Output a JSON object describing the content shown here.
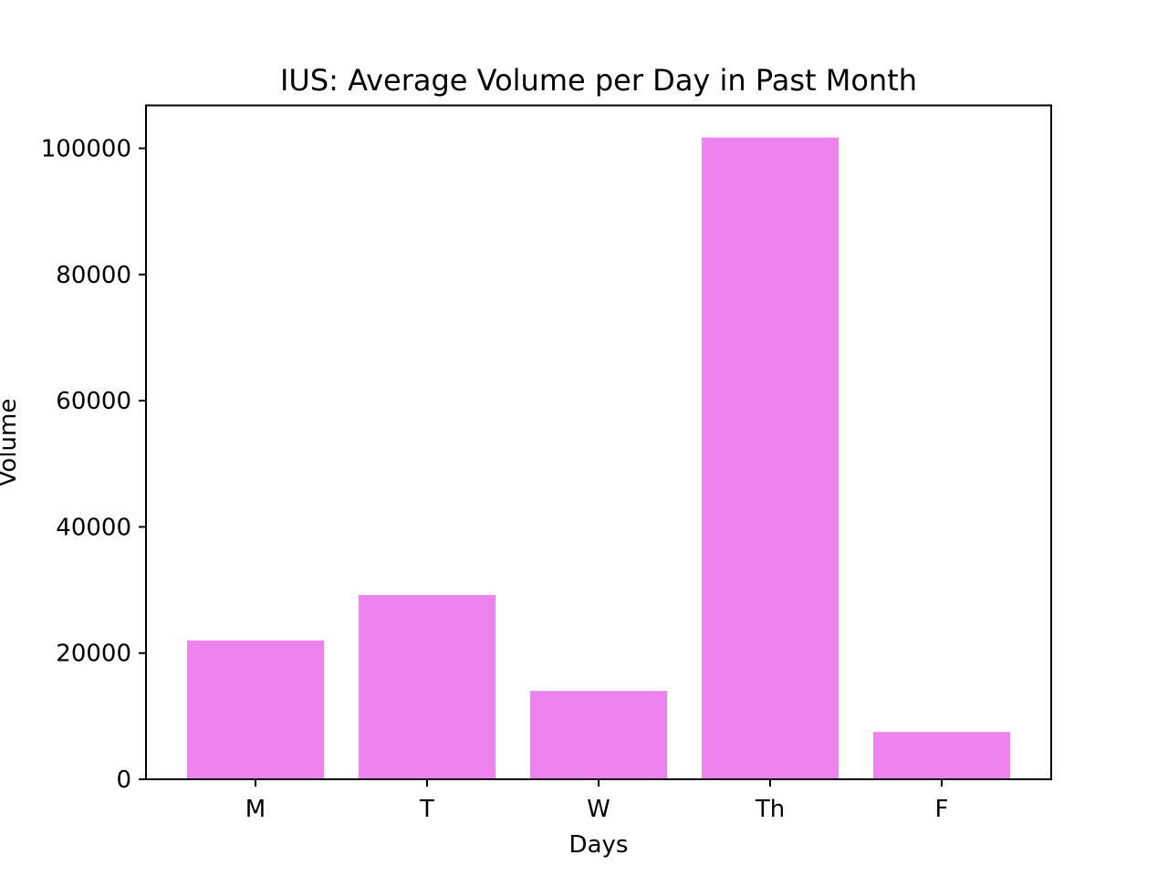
{
  "chart_data": {
    "type": "bar",
    "title": "IUS: Average Volume per Day in Past Month",
    "xlabel": "Days",
    "ylabel": "Volume",
    "categories": [
      "M",
      "T",
      "W",
      "Th",
      "F"
    ],
    "values": [
      22000,
      29200,
      14000,
      101700,
      7500
    ],
    "ylim": [
      0,
      106800
    ],
    "yticks": [
      0,
      20000,
      40000,
      60000,
      80000,
      100000
    ],
    "ytick_labels": [
      "0",
      "20000",
      "40000",
      "60000",
      "80000",
      "100000"
    ],
    "bar_color": "#ee82ee",
    "grid": false,
    "legend": "none"
  }
}
